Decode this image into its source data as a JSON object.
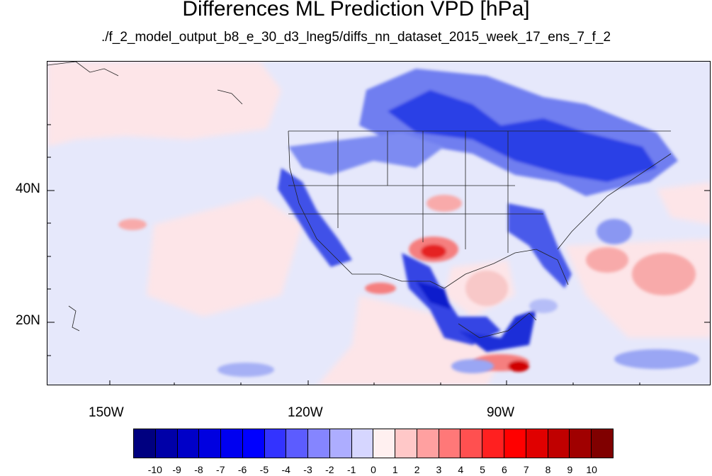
{
  "title": "Differences ML Prediction VPD [hPa]",
  "subtitle": "./f_2_model_output_b8_e_30_d3_lneg5/diffs_nn_dataset_2015_week_17_ens_7_f_2",
  "map": {
    "lat_labels": [
      "40N",
      "20N"
    ],
    "lon_labels": [
      "150W",
      "120W",
      "90W"
    ]
  },
  "colorbar": {
    "colors": [
      "#000080",
      "#0000a8",
      "#0000c8",
      "#0000e0",
      "#0000f0",
      "#0000ff",
      "#3333ff",
      "#5c5cff",
      "#8585ff",
      "#adadff",
      "#d6d6ff",
      "#fff0f0",
      "#ffc8c8",
      "#ffa0a0",
      "#ff7878",
      "#ff5050",
      "#ff2020",
      "#ff0000",
      "#e00000",
      "#c00000",
      "#a00000",
      "#800000"
    ],
    "labels": [
      "-10",
      "-9",
      "-8",
      "-7",
      "-6",
      "-5",
      "-4",
      "-3",
      "-2",
      "-1",
      "0",
      "1",
      "2",
      "3",
      "4",
      "5",
      "6",
      "7",
      "8",
      "9",
      "10"
    ]
  },
  "colors": {
    "background": "#e6e8fb",
    "negative": "#3d4fe0",
    "positive": "#f46a6a"
  }
}
